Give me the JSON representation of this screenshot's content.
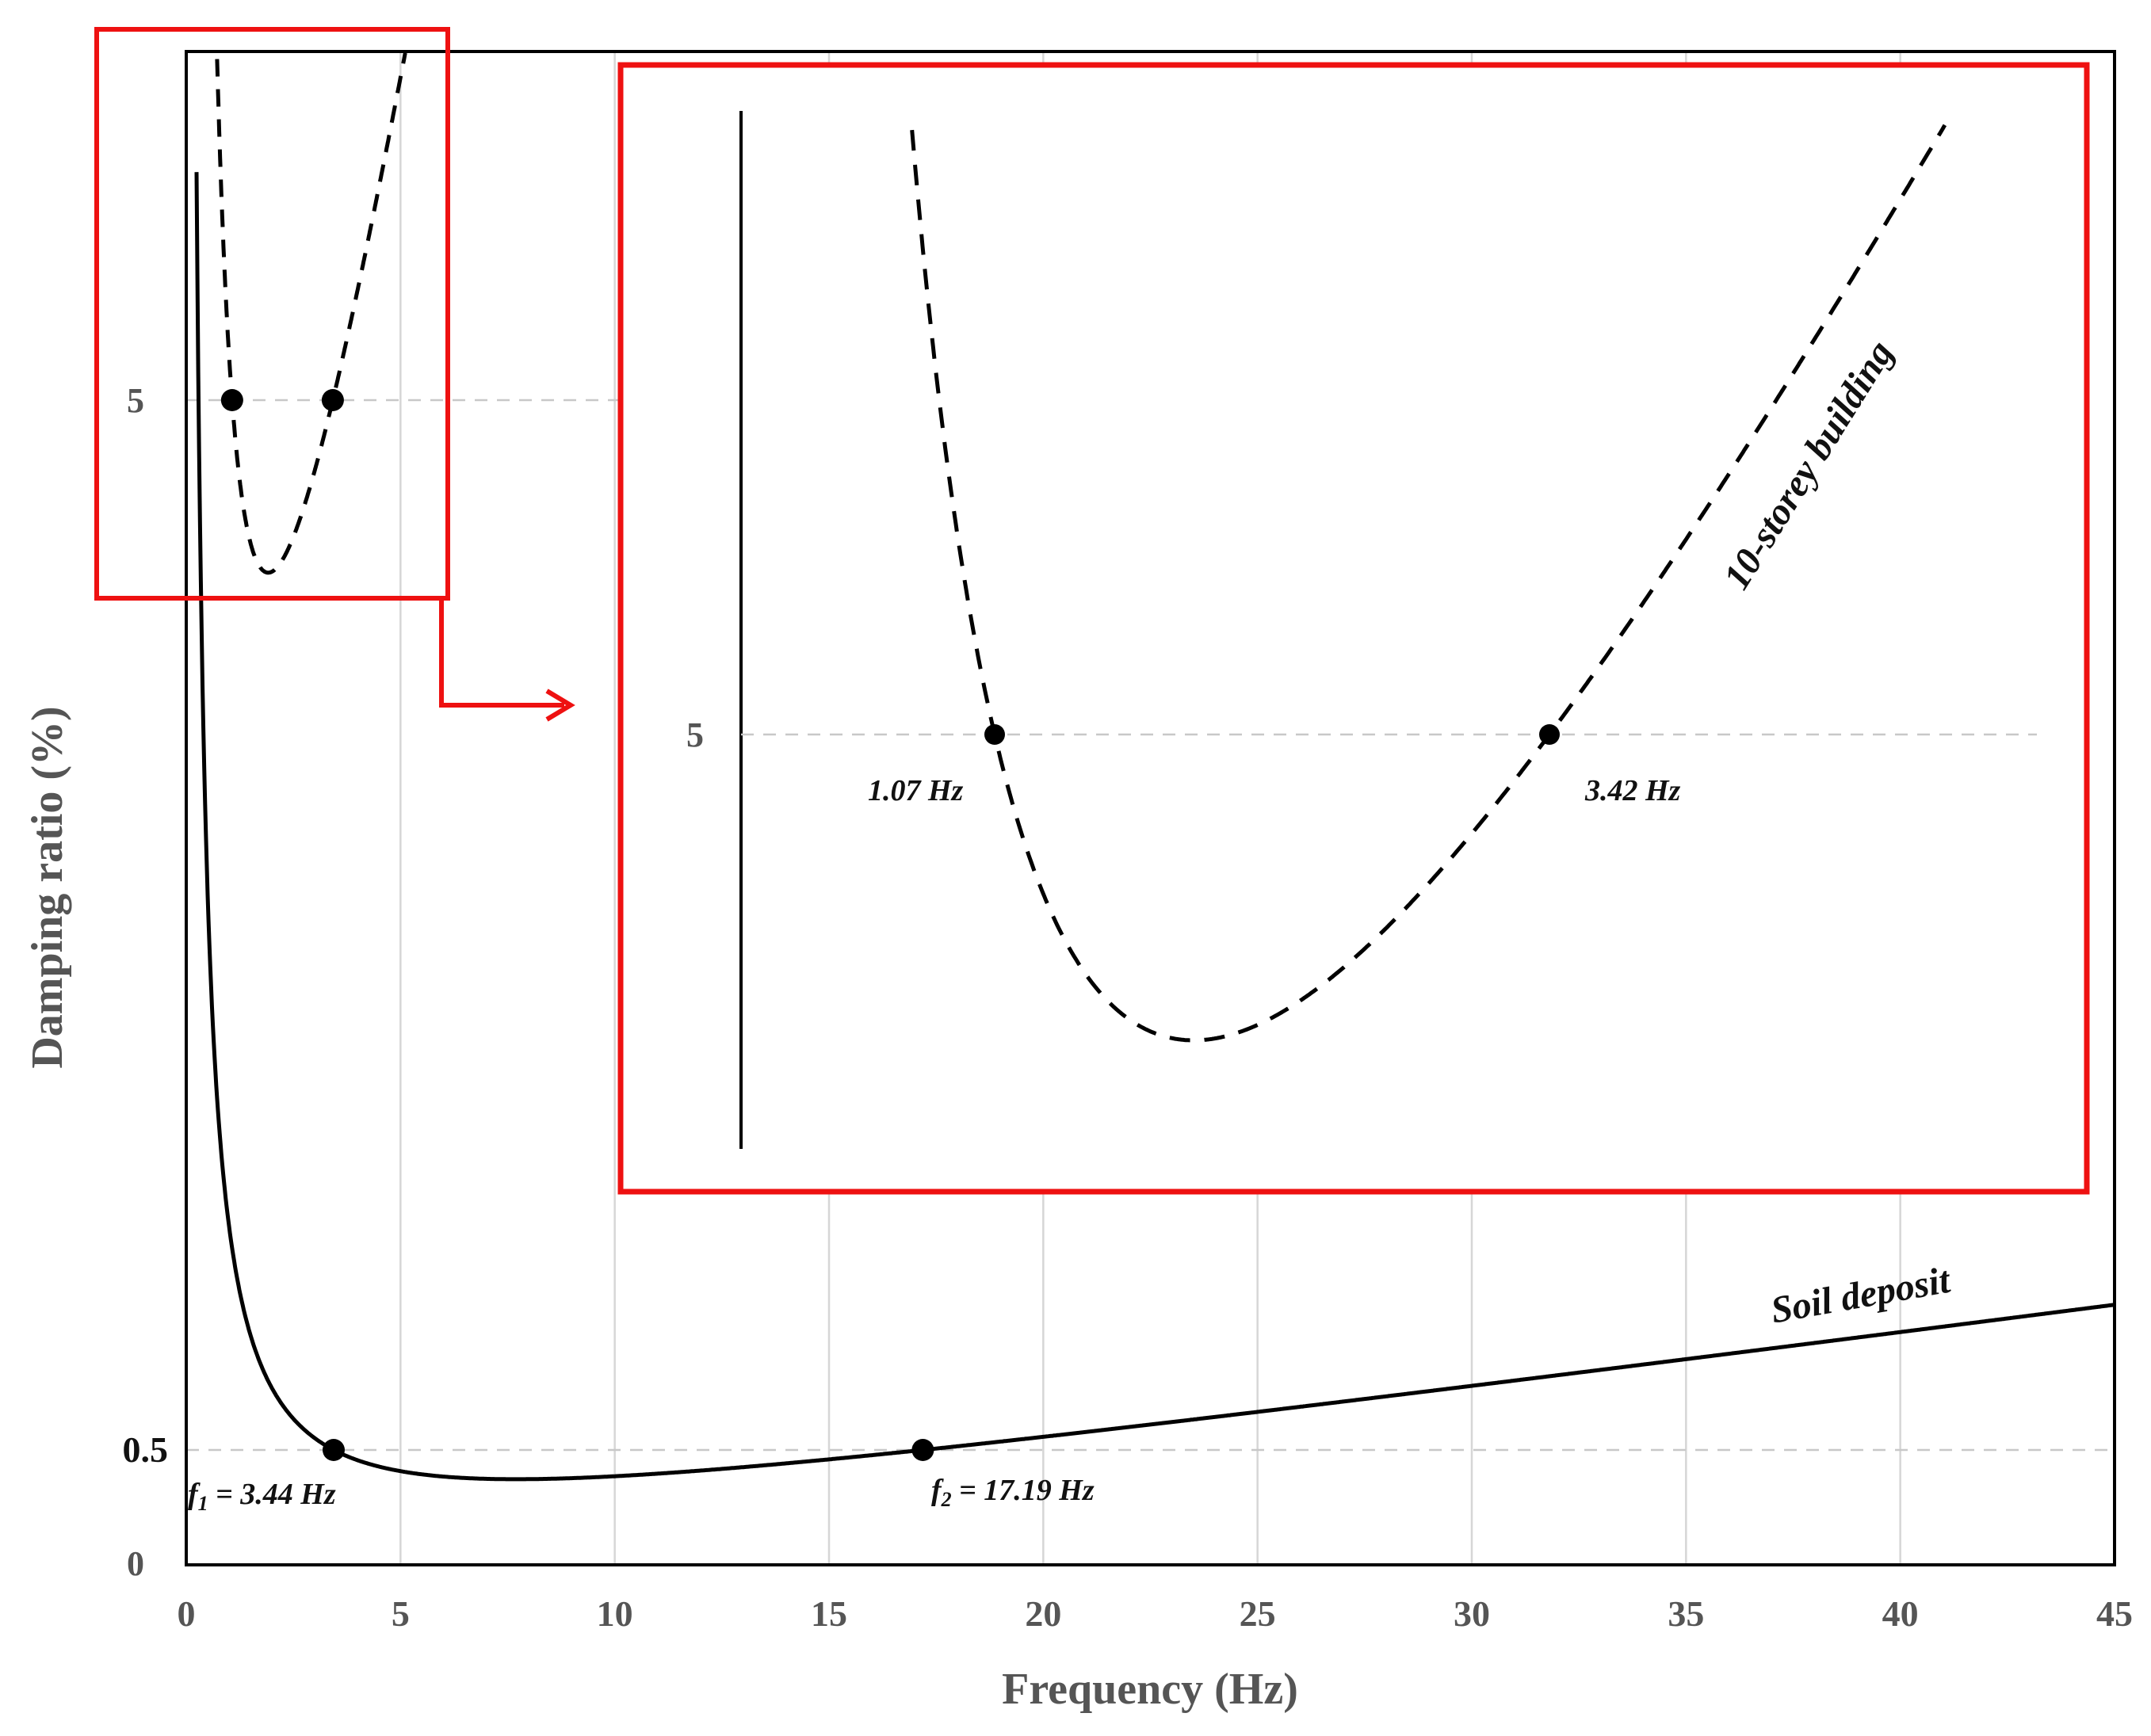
{
  "chart_data": {
    "type": "line",
    "xlabel": "Frequency (Hz)",
    "ylabel": "Damping ratio (%)",
    "xlim": [
      0,
      45
    ],
    "x_ticks": [
      "0",
      "5",
      "10",
      "15",
      "20",
      "25",
      "30",
      "35",
      "40",
      "45"
    ],
    "y_ticks": [
      "0",
      "0.5",
      "5"
    ],
    "y_scale": "non-linear (axis break between 0.5 and 5)",
    "grid": "vertical gridlines at x ticks; dashed horizontal reference lines at 0.5 and 5",
    "series": [
      {
        "name": "Soil deposit",
        "style": "solid",
        "color": "#000000",
        "model": "Rayleigh damping",
        "points": [
          {
            "x": 3.44,
            "y": 0.5,
            "label": "f1 = 3.44 Hz"
          },
          {
            "x": 17.19,
            "y": 0.5,
            "label": "f2 = 17.19 Hz"
          }
        ]
      },
      {
        "name": "10-storey building",
        "style": "dashed",
        "color": "#000000",
        "model": "Rayleigh damping",
        "points": [
          {
            "x": 1.07,
            "y": 5,
            "label": "1.07 Hz"
          },
          {
            "x": 3.42,
            "y": 5,
            "label": "3.42 Hz"
          }
        ]
      }
    ],
    "annotations": {
      "f1_prefix": "f",
      "f1_sub": "1",
      "f1_value": " = 3.44 Hz",
      "f2_prefix": "f",
      "f2_sub": "2",
      "f2_value": " = 17.19 Hz",
      "soil_label": "Soil deposit",
      "building_label": "10-storey building",
      "inset_point1_label": "1.07 Hz",
      "inset_point2_label": "3.42 Hz",
      "inset_y_tick": "5"
    },
    "inset": {
      "description_of_view": "zoom of building curve region",
      "highlight_color": "#ee1111"
    }
  }
}
